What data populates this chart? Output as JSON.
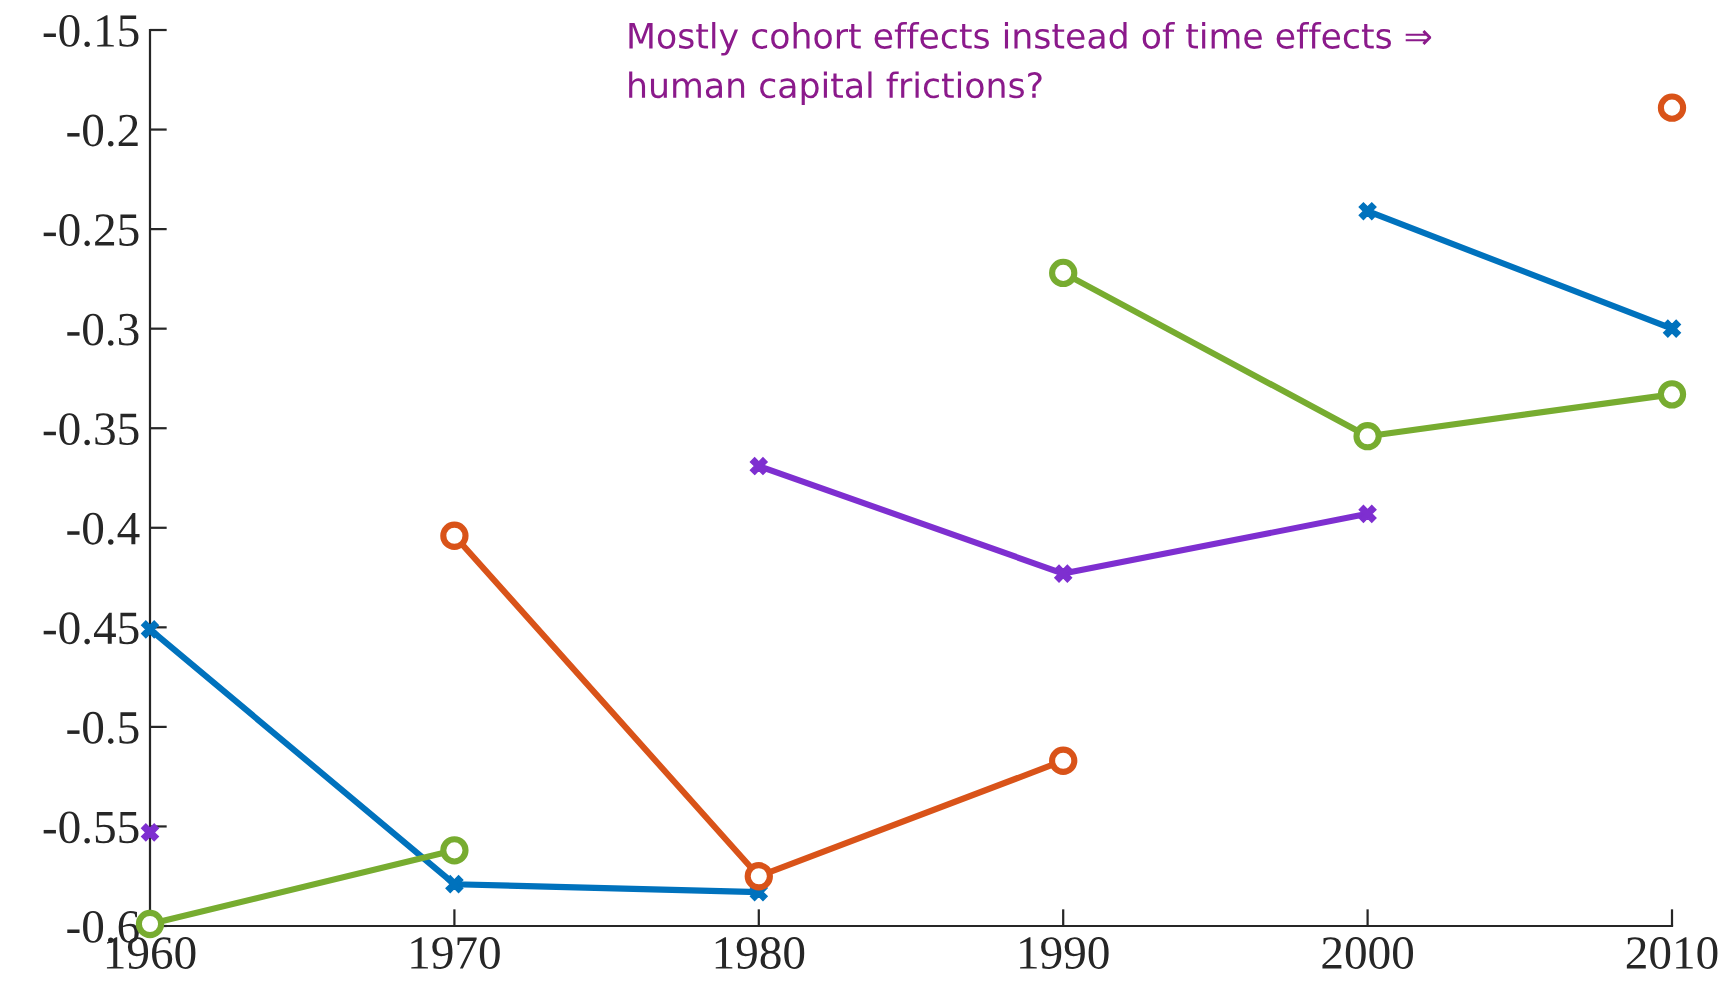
{
  "chart_data": {
    "type": "line",
    "x": [
      1960,
      1970,
      1980,
      1990,
      2000,
      2010
    ],
    "series": [
      {
        "color": "#0072bd",
        "marker": "cross",
        "values": [
          -0.451,
          -0.579,
          -0.583,
          null,
          -0.241,
          -0.3
        ]
      },
      {
        "color": "#d95319",
        "marker": "circle",
        "values": [
          null,
          -0.404,
          -0.575,
          -0.517,
          null,
          -0.189
        ]
      },
      {
        "color": "#77ac30",
        "marker": "circle",
        "values": [
          -0.599,
          -0.562,
          null,
          -0.272,
          -0.354,
          -0.333
        ]
      },
      {
        "color": "#7e2fd0",
        "marker": "cross",
        "values": [
          -0.553,
          null,
          -0.369,
          -0.423,
          -0.393,
          null
        ]
      }
    ],
    "xlim": [
      1960,
      2010
    ],
    "xticks": [
      1960,
      1970,
      1980,
      1990,
      2000,
      2010
    ],
    "ylim": [
      -0.6,
      -0.15
    ],
    "yticks": [
      {
        "value": -0.6,
        "label": "-0.6"
      },
      {
        "value": -0.55,
        "label": "-0.55"
      },
      {
        "value": -0.5,
        "label": "-0.5"
      },
      {
        "value": -0.45,
        "label": "-0.45"
      },
      {
        "value": -0.4,
        "label": "-0.4"
      },
      {
        "value": -0.35,
        "label": "-0.35"
      },
      {
        "value": -0.3,
        "label": "-0.3"
      },
      {
        "value": -0.25,
        "label": "-0.25"
      },
      {
        "value": -0.2,
        "label": "-0.2"
      },
      {
        "value": -0.15,
        "label": "-0.15"
      }
    ],
    "annotations": [
      "Mostly cohort effects instead of time effects ⇒ human capital frictions?"
    ],
    "grid": false,
    "legend": false,
    "line_style": "solid"
  }
}
